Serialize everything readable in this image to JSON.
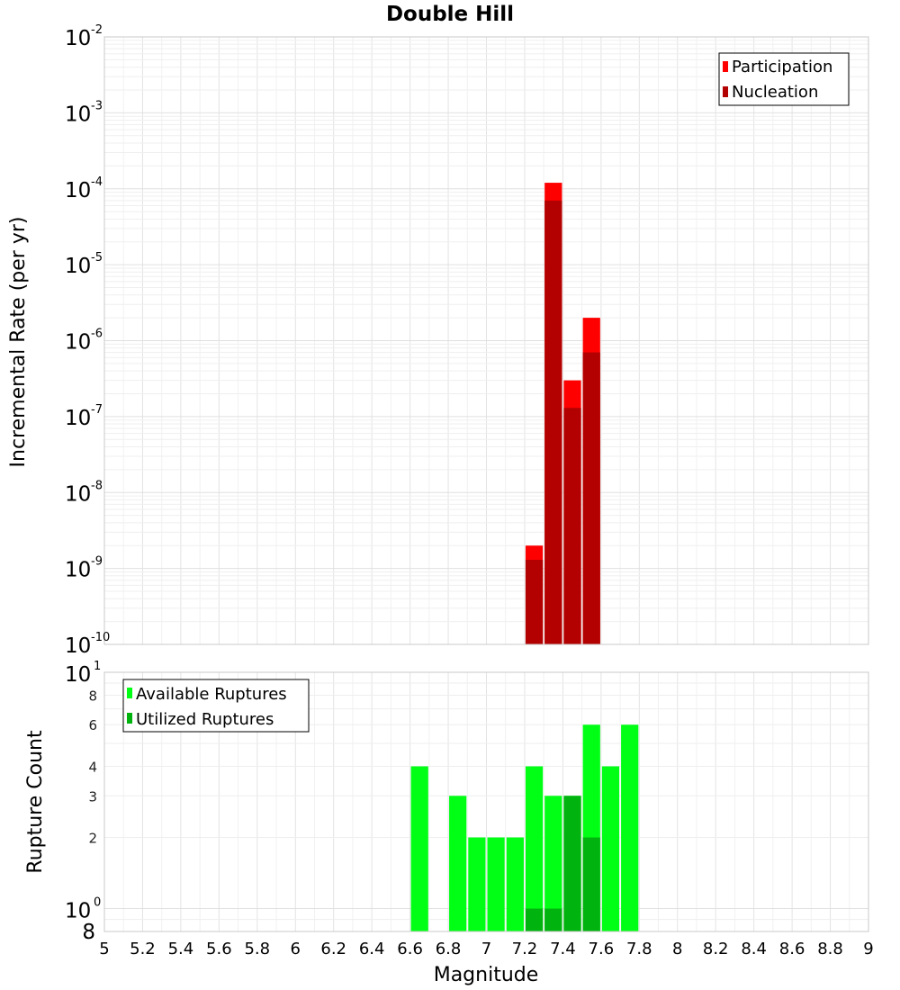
{
  "chart_data": [
    {
      "type": "bar",
      "title": "Double Hill",
      "ylabel": "Incremental Rate (per yr)",
      "yscale": "log",
      "ylim": [
        1e-10,
        0.01
      ],
      "xlim": [
        5,
        9
      ],
      "grid": true,
      "legend_position": "top-right",
      "bin_width": 0.1,
      "y_ticks": [
        {
          "mantissa": "10",
          "exp": "-10"
        },
        {
          "mantissa": "10",
          "exp": "-9"
        },
        {
          "mantissa": "10",
          "exp": "-8"
        },
        {
          "mantissa": "10",
          "exp": "-7"
        },
        {
          "mantissa": "10",
          "exp": "-6"
        },
        {
          "mantissa": "10",
          "exp": "-5"
        },
        {
          "mantissa": "10",
          "exp": "-4"
        },
        {
          "mantissa": "10",
          "exp": "-3"
        },
        {
          "mantissa": "10",
          "exp": "-2"
        }
      ],
      "series": [
        {
          "name": "Participation",
          "color": "#ff0000",
          "x": [
            7.25,
            7.35,
            7.45,
            7.55
          ],
          "values": [
            2e-09,
            0.00012,
            3e-07,
            2e-06
          ]
        },
        {
          "name": "Nucleation",
          "color": "#b30000",
          "x": [
            7.25,
            7.35,
            7.45,
            7.55
          ],
          "values": [
            1.3e-09,
            7e-05,
            1.3e-07,
            7e-07
          ]
        }
      ]
    },
    {
      "type": "bar",
      "ylabel": "Rupture Count",
      "xlabel": "Magnitude",
      "yscale": "log",
      "ylim": [
        0.8,
        10
      ],
      "xlim": [
        5,
        9
      ],
      "grid": true,
      "legend_position": "top-left",
      "bin_width": 0.1,
      "x_ticks": [
        "5",
        "5.2",
        "5.4",
        "5.6",
        "5.8",
        "6",
        "6.2",
        "6.4",
        "6.6",
        "6.8",
        "7",
        "7.2",
        "7.4",
        "7.6",
        "7.8",
        "8",
        "8.2",
        "8.4",
        "8.6",
        "8.8",
        "9"
      ],
      "y_major_ticks": [
        {
          "mantissa": "10",
          "exp": "0"
        },
        {
          "mantissa": "10",
          "exp": "1"
        }
      ],
      "y_minor_ticks": [
        "8",
        "2",
        "3",
        "4",
        "6",
        "8"
      ],
      "series": [
        {
          "name": "Available Ruptures",
          "color": "#00ff14",
          "x": [
            6.65,
            6.85,
            6.95,
            7.05,
            7.15,
            7.25,
            7.35,
            7.45,
            7.55,
            7.65,
            7.75
          ],
          "values": [
            4,
            3,
            2,
            2,
            2,
            4,
            3,
            3,
            6,
            4,
            6
          ]
        },
        {
          "name": "Utilized Ruptures",
          "color": "#00b30e",
          "x": [
            7.25,
            7.35,
            7.45,
            7.55
          ],
          "values": [
            1,
            1,
            3,
            2
          ]
        }
      ]
    }
  ]
}
